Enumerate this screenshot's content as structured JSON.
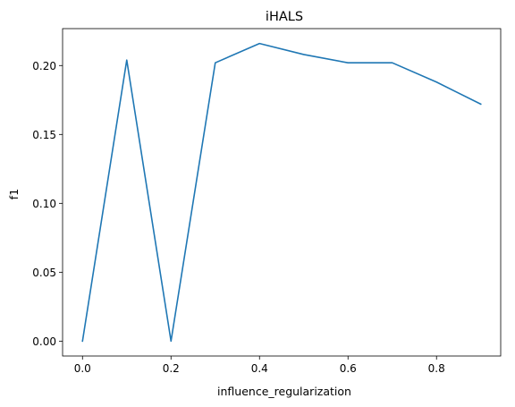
{
  "chart_data": {
    "type": "line",
    "title": "iHALS",
    "xlabel": "influence_regularization",
    "ylabel": "f1",
    "x": [
      0.0,
      0.1,
      0.2,
      0.3,
      0.4,
      0.5,
      0.6,
      0.7,
      0.8,
      0.9
    ],
    "series": [
      {
        "values": [
          0.0,
          0.204,
          0.0,
          0.202,
          0.216,
          0.208,
          0.202,
          0.202,
          0.188,
          0.172
        ],
        "color": "#1f77b4"
      }
    ],
    "xlim": [
      -0.045,
      0.945
    ],
    "ylim": [
      -0.0108,
      0.2268
    ],
    "xticks": [
      {
        "value": 0.0,
        "label": "0.0"
      },
      {
        "value": 0.2,
        "label": "0.2"
      },
      {
        "value": 0.4,
        "label": "0.4"
      },
      {
        "value": 0.6,
        "label": "0.6"
      },
      {
        "value": 0.8,
        "label": "0.8"
      }
    ],
    "yticks": [
      {
        "value": 0.0,
        "label": "0.00"
      },
      {
        "value": 0.05,
        "label": "0.05"
      },
      {
        "value": 0.1,
        "label": "0.10"
      },
      {
        "value": 0.15,
        "label": "0.15"
      },
      {
        "value": 0.2,
        "label": "0.20"
      }
    ],
    "grid": false,
    "legend": false
  }
}
